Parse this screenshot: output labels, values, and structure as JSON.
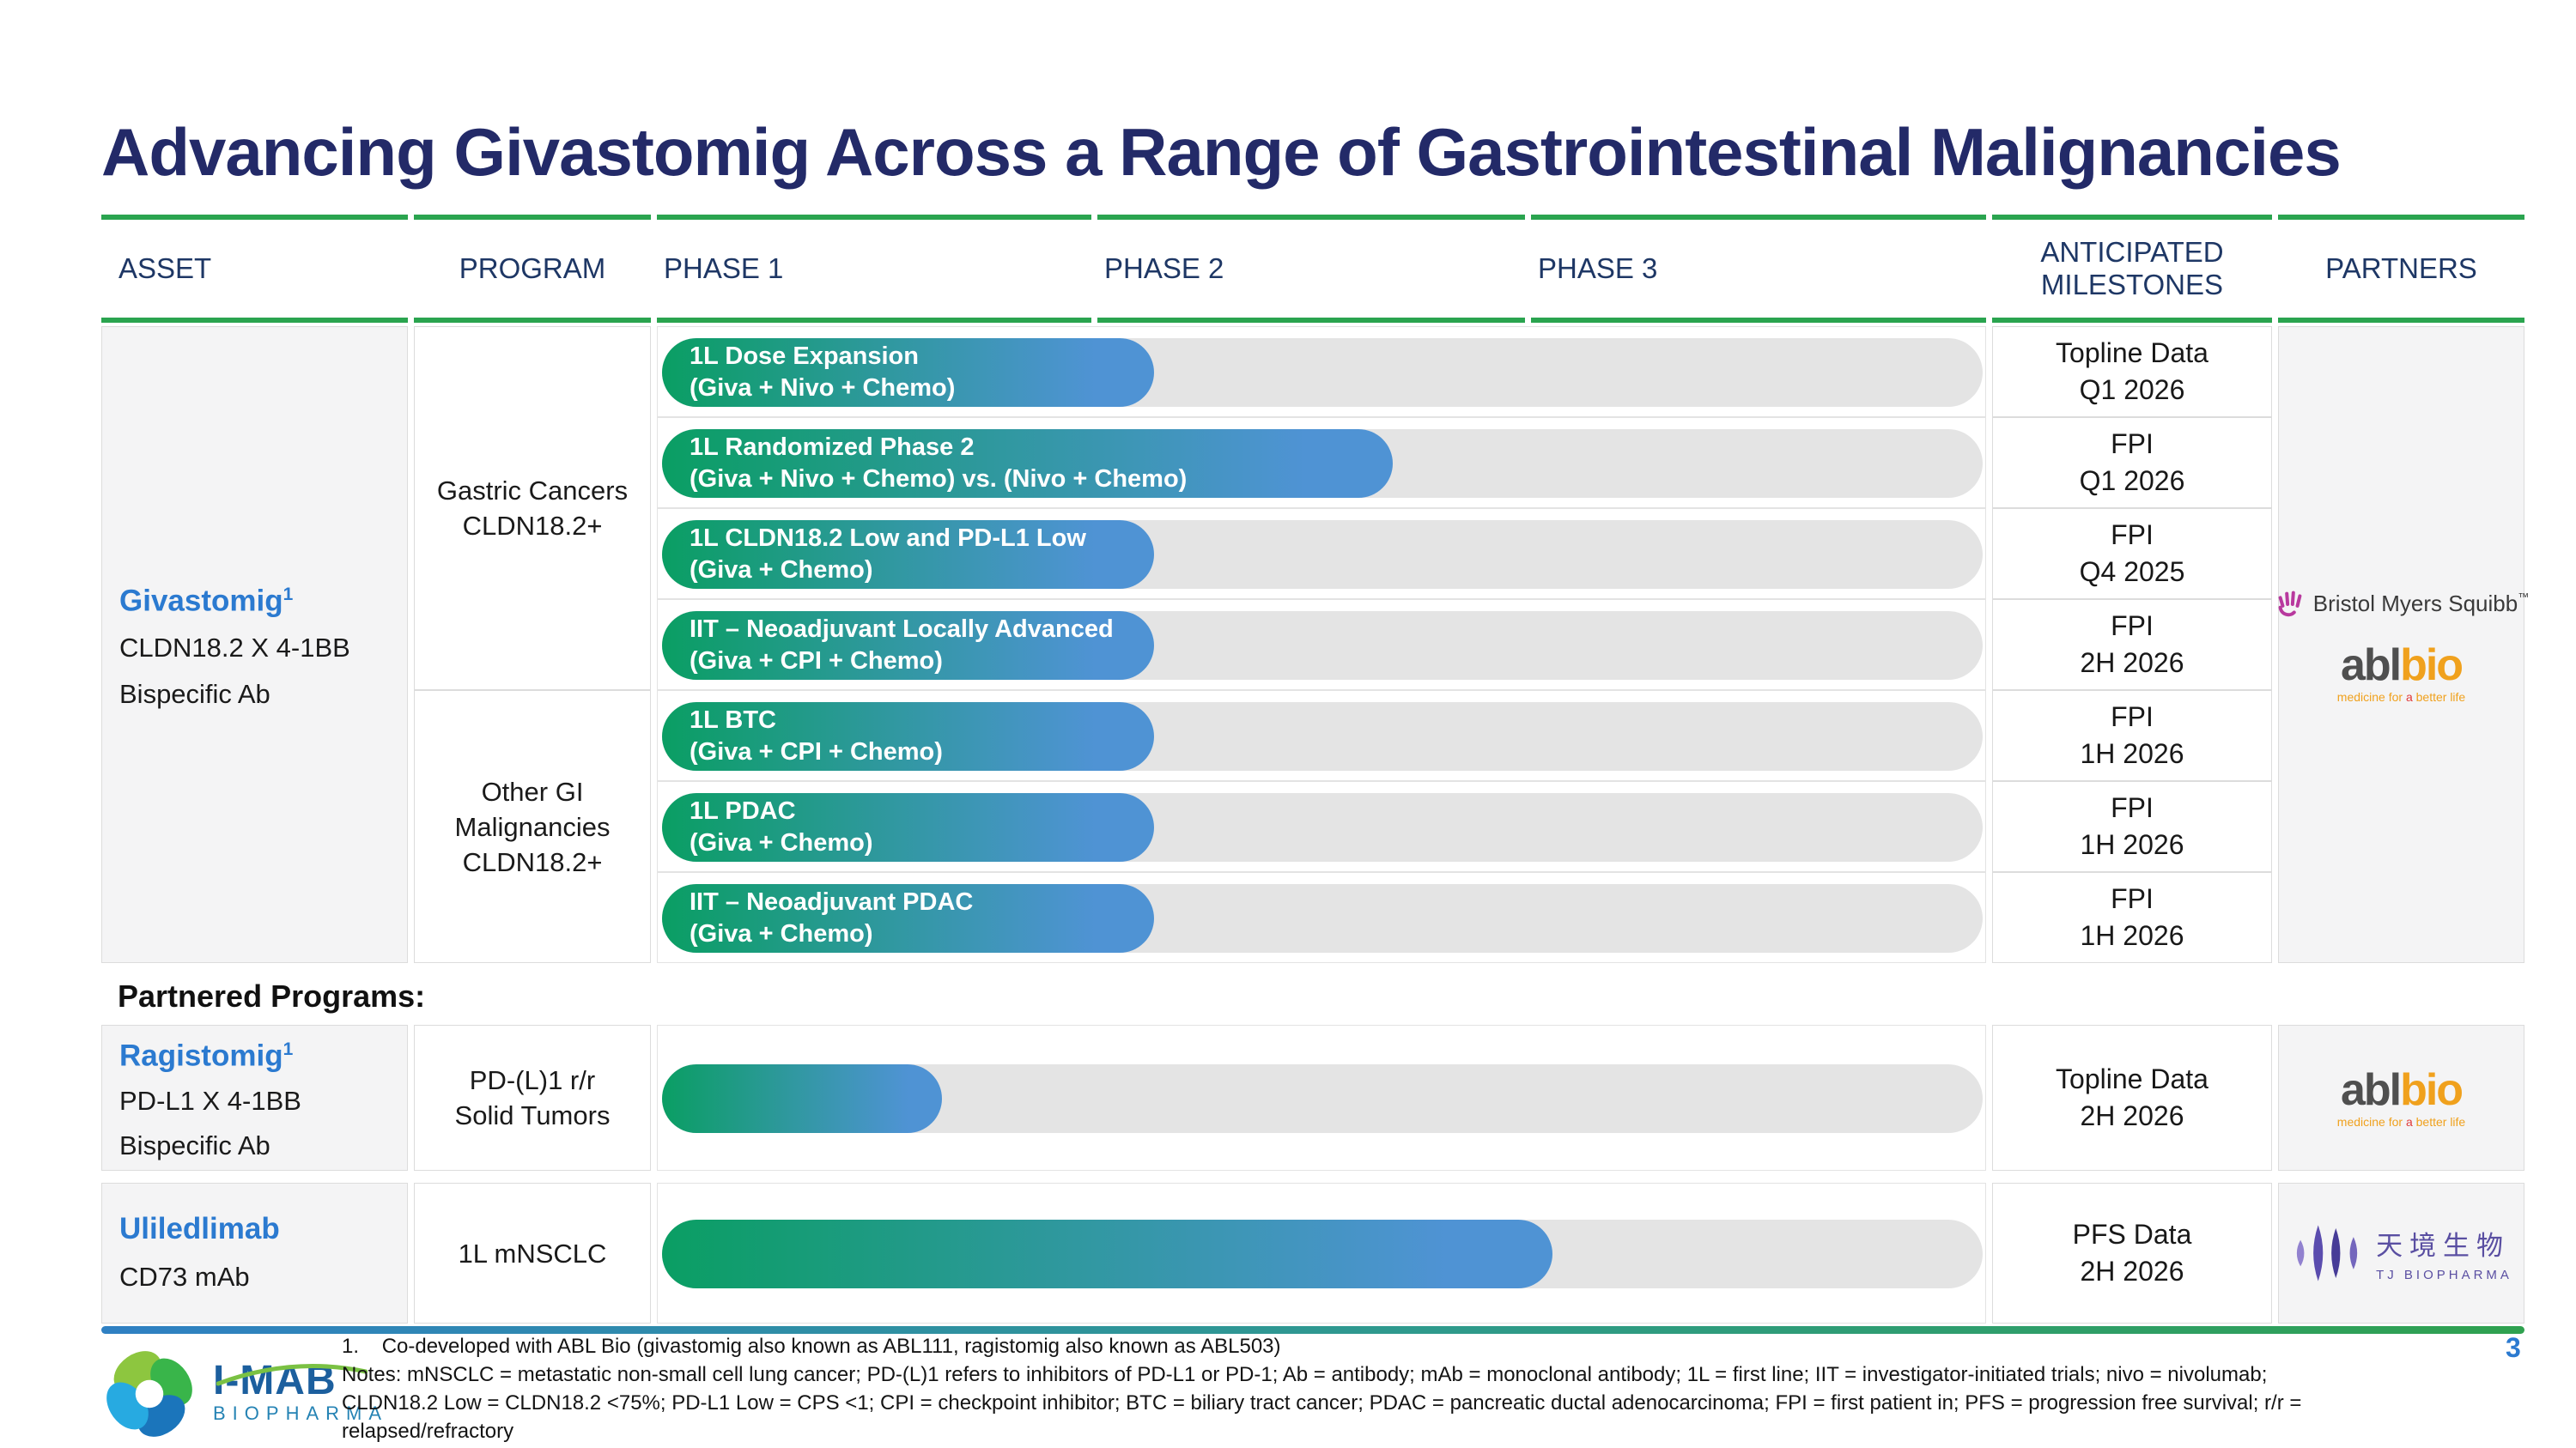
{
  "slide": {
    "title": "Advancing Givastomig Across a Range of Gastrointestinal Malignancies",
    "page_number": "3"
  },
  "colors": {
    "title_navy": "#232a68",
    "header_navy": "#1e3765",
    "green_rule": "#2aa44f",
    "bar_green": "#0a9e63",
    "bar_blue": "#4f93d4",
    "track_gray": "#e4e4e4",
    "asset_blue": "#2b7ad0"
  },
  "headers": {
    "asset": "ASSET",
    "program": "PROGRAM",
    "phase1": "PHASE 1",
    "phase2": "PHASE 2",
    "phase3": "PHASE 3",
    "milestones_line1": "ANTICIPATED",
    "milestones_line2": "MILESTONES",
    "partners": "PARTNERS"
  },
  "givastomig": {
    "name": "Givastomig",
    "sup": "1",
    "target": "CLDN18.2 X 4-1BB",
    "modality": "Bispecific Ab",
    "program_group1": {
      "line1": "Gastric Cancers",
      "line2": "CLDN18.2+"
    },
    "program_group2": {
      "line1": "Other GI",
      "line2": "Malignancies",
      "line3": "CLDN18.2+"
    },
    "trials": [
      {
        "name": "1L Dose Expansion",
        "combo": "(Giva + Nivo + Chemo)",
        "progress_pct": 35,
        "milestone": "Topline Data",
        "timing": "Q1 2026"
      },
      {
        "name": "1L Randomized Phase 2",
        "combo": "(Giva + Nivo + Chemo) vs. (Nivo + Chemo)",
        "progress_pct": 53,
        "milestone": "FPI",
        "timing": "Q1 2026"
      },
      {
        "name": "1L CLDN18.2 Low and PD-L1 Low",
        "combo": "(Giva + Chemo)",
        "progress_pct": 35,
        "milestone": "FPI",
        "timing": "Q4 2025"
      },
      {
        "name": "IIT – Neoadjuvant Locally Advanced",
        "combo": "(Giva + CPI + Chemo)",
        "progress_pct": 35,
        "milestone": "FPI",
        "timing": "2H 2026"
      },
      {
        "name": "1L BTC",
        "combo": "(Giva + CPI + Chemo)",
        "progress_pct": 35,
        "milestone": "FPI",
        "timing": "1H 2026"
      },
      {
        "name": "1L PDAC",
        "combo": "(Giva + Chemo)",
        "progress_pct": 35,
        "milestone": "FPI",
        "timing": "1H 2026"
      },
      {
        "name": "IIT – Neoadjuvant PDAC",
        "combo": "(Giva + Chemo)",
        "progress_pct": 35,
        "milestone": "FPI",
        "timing": "1H 2026"
      }
    ]
  },
  "partnered_section": {
    "heading": "Partnered Programs:",
    "rows": [
      {
        "name": "Ragistomig",
        "sup": "1",
        "target": "PD-L1 X 4-1BB",
        "modality": "Bispecific Ab",
        "program_line1": "PD-(L)1 r/r",
        "program_line2": "Solid Tumors",
        "progress_pct": 19,
        "milestone": "Topline Data",
        "timing": "2H 2026",
        "partner": "ablbio"
      },
      {
        "name": "Uliledlimab",
        "target": "CD73 mAb",
        "program_line1": "1L mNSCLC",
        "progress_pct": 65,
        "milestone": "PFS Data",
        "timing": "2H 2026",
        "partner": "TJ Biopharma"
      }
    ]
  },
  "logos": {
    "bms": {
      "text": "Bristol Myers Squibb",
      "tm": "™"
    },
    "ablbio": {
      "part1": "abl",
      "part2": "bio",
      "tag1": "medicine for ",
      "tag2": "a ",
      "tag3": "better life"
    },
    "tj": {
      "cn": "天境生物",
      "en": "TJ BIOPHARMA"
    },
    "imab": {
      "name": "I-MAB",
      "sub": "BIOPHARMA"
    }
  },
  "footnotes": {
    "line1": "1.    Co-developed with ABL Bio (givastomig also known as ABL111, ragistomig also known as ABL503)",
    "line2": "Notes: mNSCLC = metastatic non-small cell lung cancer; PD-(L)1 refers to inhibitors of PD-L1 or PD-1; Ab = antibody; mAb = monoclonal antibody; 1L = first line; IIT = investigator-initiated trials; nivo = nivolumab;",
    "line3": "CLDN18.2 Low = CLDN18.2 <75%; PD-L1 Low = CPS <1; CPI = checkpoint inhibitor; BTC = biliary tract cancer; PDAC = pancreatic ductal adenocarcinoma; FPI = first patient in; PFS = progression free survival; r/r =",
    "line4": "relapsed/refractory"
  }
}
